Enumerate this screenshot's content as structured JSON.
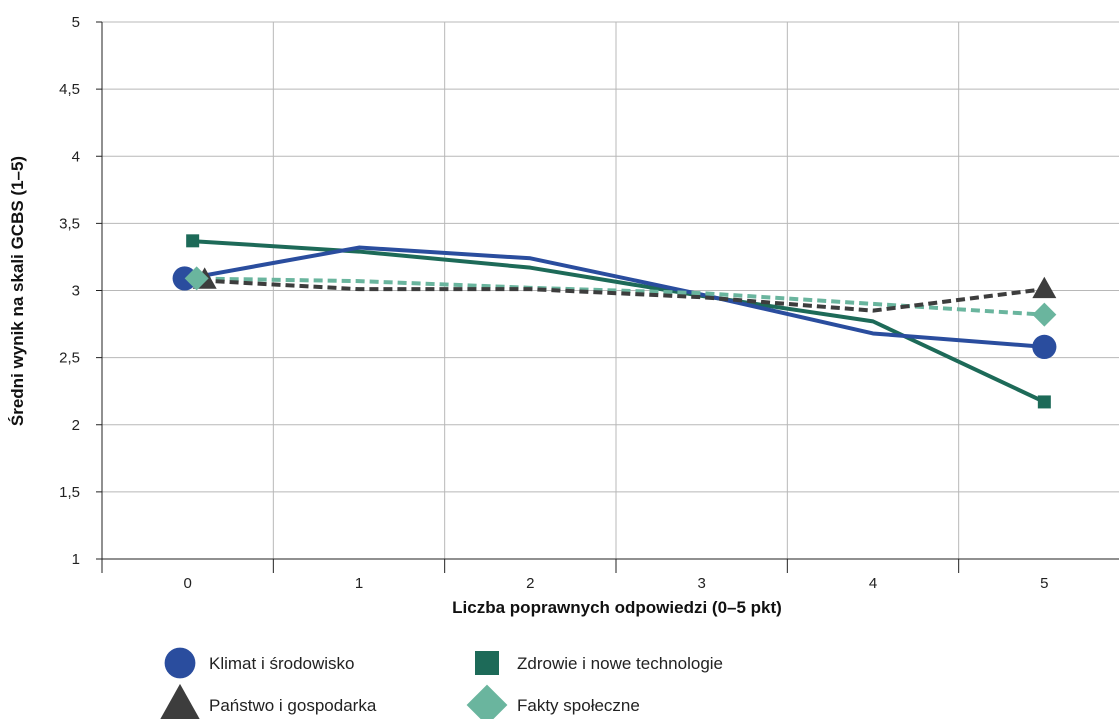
{
  "chart_data": {
    "type": "line",
    "xlabel": "Liczba poprawnych odpowiedzi (0–5 pkt)",
    "ylabel": "Średni wynik na skali GCBS (1–5)",
    "x": [
      0,
      1,
      2,
      3,
      4,
      5
    ],
    "x_tick_labels": [
      "0",
      "1",
      "2",
      "3",
      "4",
      "5"
    ],
    "ylim": [
      1,
      5
    ],
    "y_ticks": [
      1,
      1.5,
      2,
      2.5,
      3,
      3.5,
      4,
      4.5,
      5
    ],
    "y_tick_labels": [
      "1",
      "1,5",
      "2",
      "2,5",
      "3",
      "3,5",
      "4",
      "4,5",
      "5"
    ],
    "grid": true,
    "legend_position": "bottom",
    "series": [
      {
        "name": "Klimat i środowisko",
        "values": [
          3.09,
          3.32,
          3.24,
          2.97,
          2.68,
          2.58
        ],
        "color": "#2a4d9e",
        "style": "solid",
        "marker": "circle"
      },
      {
        "name": "Zdrowie i nowe technologie",
        "values": [
          3.37,
          3.29,
          3.17,
          2.96,
          2.77,
          2.17
        ],
        "color": "#1d6a58",
        "style": "solid",
        "marker": "square"
      },
      {
        "name": "Państwo i gospodarka",
        "values": [
          3.08,
          3.01,
          3.01,
          2.95,
          2.85,
          3.01
        ],
        "color": "#3d3d3d",
        "style": "dashed",
        "marker": "triangle"
      },
      {
        "name": "Fakty społeczne",
        "values": [
          3.09,
          3.07,
          3.02,
          2.98,
          2.9,
          2.82
        ],
        "color": "#6ab59e",
        "style": "dashed",
        "marker": "diamond"
      }
    ]
  }
}
